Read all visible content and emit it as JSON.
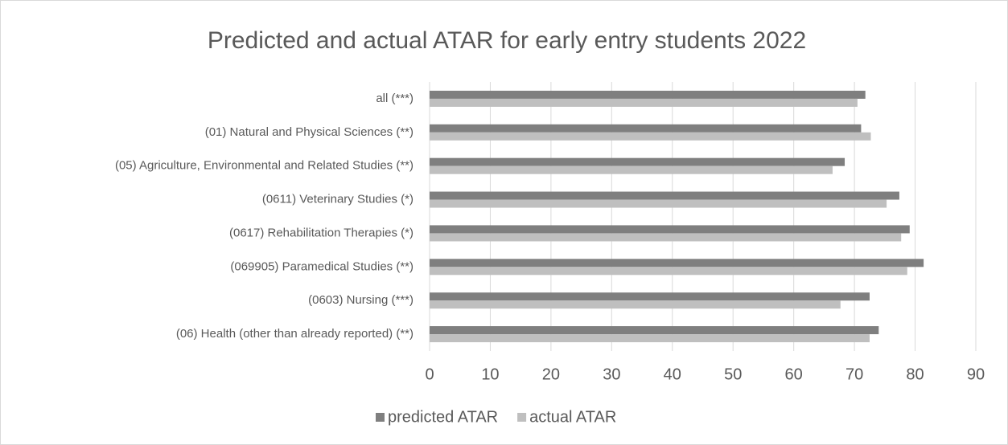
{
  "chart_data": {
    "type": "hbar",
    "title": "Predicted and actual ATAR for early entry students 2022",
    "categories": [
      "all (***)",
      "(01) Natural and Physical Sciences (**)",
      "(05) Agriculture, Environmental and Related Studies (**)",
      "(0611) Veterinary Studies (*)",
      "(0617) Rehabilitation Therapies (*)",
      "(069905) Paramedical Studies (**)",
      "(0603) Nursing (***)",
      "(06) Health (other than already reported) (**)"
    ],
    "series": [
      {
        "name": "predicted ATAR",
        "color": "#7f7f7f",
        "values": [
          71.8,
          71.1,
          68.4,
          77.4,
          79.1,
          81.4,
          72.5,
          74.0
        ]
      },
      {
        "name": "actual ATAR",
        "color": "#bfbfbf",
        "values": [
          70.5,
          72.7,
          66.4,
          75.3,
          77.7,
          78.7,
          67.7,
          72.5
        ]
      }
    ],
    "xlim": [
      0,
      90
    ],
    "xticks": [
      0,
      10,
      20,
      30,
      40,
      50,
      60,
      70,
      80,
      90
    ],
    "grid": true,
    "legend": "bottom"
  }
}
